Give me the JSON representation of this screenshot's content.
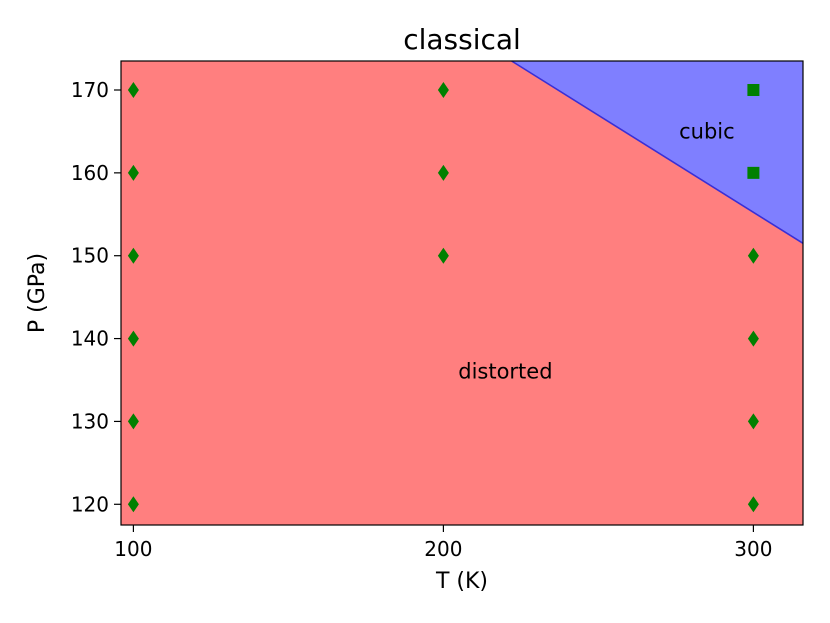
{
  "chart_data": {
    "type": "scatter",
    "title": "classical",
    "xlabel": "T (K)",
    "ylabel": "P (GPa)",
    "xlim": [
      96,
      316
    ],
    "ylim": [
      117.5,
      173.5
    ],
    "xticks": [
      100,
      200,
      300
    ],
    "yticks": [
      120,
      130,
      140,
      150,
      160,
      170
    ],
    "grid": false,
    "regions": [
      {
        "name": "distorted",
        "label": "distorted",
        "color": "#ff7f7f",
        "label_at": [
          220,
          136
        ]
      },
      {
        "name": "cubic",
        "label": "cubic",
        "color": "#7f7fff",
        "label_at": [
          285,
          165
        ]
      }
    ],
    "boundary": {
      "color": "#3a2fd6",
      "points": [
        [
          222,
          173.5
        ],
        [
          316,
          151.5
        ]
      ]
    },
    "series": [
      {
        "marker": "diamond",
        "color": "#008000",
        "points": [
          [
            100,
            120
          ],
          [
            100,
            130
          ],
          [
            100,
            140
          ],
          [
            100,
            150
          ],
          [
            100,
            160
          ],
          [
            100,
            170
          ],
          [
            200,
            150
          ],
          [
            200,
            160
          ],
          [
            200,
            170
          ],
          [
            300,
            120
          ],
          [
            300,
            130
          ],
          [
            300,
            140
          ],
          [
            300,
            150
          ]
        ]
      },
      {
        "marker": "square",
        "color": "#008000",
        "points": [
          [
            300,
            160
          ],
          [
            300,
            170
          ]
        ]
      }
    ]
  }
}
